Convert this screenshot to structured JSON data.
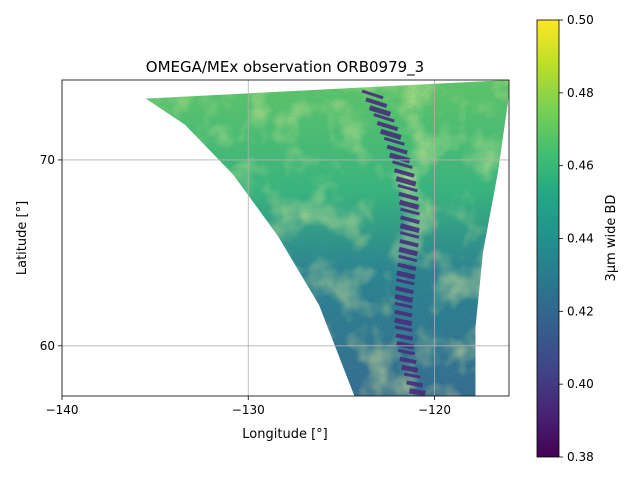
{
  "chart_data": {
    "type": "heatmap",
    "title": "OMEGA/MEx observation ORB0979_3",
    "xlabel": "Longitude [°]",
    "ylabel": "Latitude [°]",
    "xlim": [
      -140,
      -116
    ],
    "ylim": [
      57.3,
      74.3
    ],
    "xticks": [
      -140,
      -130,
      -120
    ],
    "xtick_labels": [
      "−140",
      "−130",
      "−120"
    ],
    "yticks": [
      60,
      70
    ],
    "ytick_labels": [
      "60",
      "70"
    ],
    "grid": true,
    "colormap": "viridis",
    "colorbar": {
      "label": "3µm wide BD",
      "range": [
        0.38,
        0.5
      ],
      "ticks": [
        0.38,
        0.4,
        0.42,
        0.44,
        0.46,
        0.48,
        0.5
      ],
      "tick_labels": [
        "0.38",
        "0.40",
        "0.42",
        "0.44",
        "0.46",
        "0.48",
        "0.50"
      ]
    },
    "footprint_lonlat": [
      [
        -135.5,
        73.3
      ],
      [
        -116.0,
        74.3
      ],
      [
        -116.0,
        73.5
      ],
      [
        -116.6,
        69.3
      ],
      [
        -117.4,
        65.0
      ],
      [
        -117.8,
        61.0
      ],
      [
        -117.8,
        57.3
      ],
      [
        -124.3,
        57.3
      ],
      [
        -126.2,
        62.2
      ],
      [
        -128.4,
        65.9
      ],
      [
        -130.8,
        69.2
      ],
      [
        -133.4,
        71.9
      ]
    ],
    "value_summary": {
      "north_mean": 0.465,
      "south_mean": 0.43,
      "dark_stripe_band_value": 0.39,
      "dark_stripe_band_lon_range": [
        -123.5,
        -120.3
      ]
    }
  }
}
